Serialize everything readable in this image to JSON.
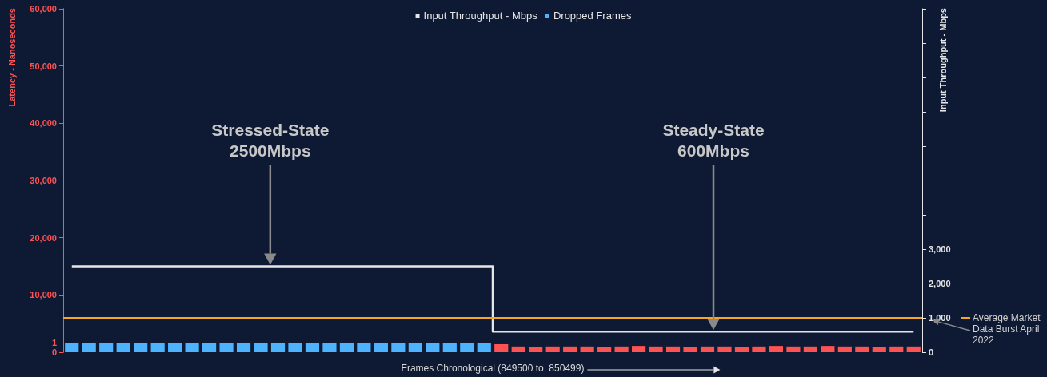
{
  "chart_data": {
    "type": "bar",
    "xlabel": "Frames Chronological (849500 to  850499)",
    "ylabel": "Latency - Nanoseconds",
    "y2label": "Input Throughput - Mbps",
    "categories": [
      null,
      null,
      null,
      null,
      null,
      null,
      null,
      null,
      null,
      null,
      null,
      null,
      null,
      null,
      null,
      null,
      null,
      null,
      null,
      null,
      null,
      null,
      null,
      null,
      null,
      null,
      null,
      null,
      null,
      null,
      null,
      null,
      null,
      null,
      null,
      null,
      null,
      null,
      null,
      null,
      null,
      null,
      null,
      null,
      null,
      null,
      null,
      null,
      null,
      null
    ],
    "ylim": [
      0,
      60000
    ],
    "yticks": [
      {
        "value": 10000,
        "label": "10,000"
      },
      {
        "value": 20000,
        "label": "20,000"
      },
      {
        "value": 30000,
        "label": "30,000"
      },
      {
        "value": 40000,
        "label": "40,000"
      },
      {
        "value": 50000,
        "label": "50,000"
      },
      {
        "value": 60000,
        "label": "60,000"
      }
    ],
    "y3lim": [
      0,
      36
    ],
    "y3ticks": [
      0,
      1
    ],
    "y2lim": [
      0,
      10000
    ],
    "y2ticks": [
      0,
      {
        "value": 1000,
        "label": "1,000"
      },
      {
        "value": 2000,
        "label": "2,000"
      },
      {
        "value": 3000,
        "label": "3,000"
      },
      {
        "value": 4000,
        "label": null
      },
      {
        "value": 5000,
        "label": null
      },
      {
        "value": 6000,
        "label": null
      },
      {
        "value": 7000,
        "label": null
      },
      {
        "value": 8000,
        "label": null
      },
      {
        "value": 9000,
        "label": null
      },
      {
        "value": 10000,
        "label": null
      }
    ],
    "tick_labels": "y",
    "legend": "top",
    "grid": false,
    "series": [
      {
        "name": "Input Throughput - Mbps",
        "type": "step",
        "axis": "y2",
        "color": "#e6e6e6",
        "values": [
          2500,
          2500,
          2500,
          2500,
          2500,
          2500,
          2500,
          2500,
          2500,
          2500,
          2500,
          2500,
          2500,
          2500,
          2500,
          2500,
          2500,
          2500,
          2500,
          2500,
          2500,
          2500,
          2500,
          2500,
          2500,
          600,
          600,
          600,
          600,
          600,
          600,
          600,
          600,
          600,
          600,
          600,
          600,
          600,
          600,
          600,
          600,
          600,
          600,
          600,
          600,
          600,
          600,
          600,
          600,
          600
        ]
      },
      {
        "name": "Dropped Frames",
        "axis": "y3",
        "color": "#4db3ff",
        "values": [
          1,
          1,
          1,
          1,
          1,
          1,
          1,
          1,
          1,
          1,
          1,
          1,
          1,
          1,
          1,
          1,
          1,
          1,
          1,
          1,
          1,
          1,
          1,
          1,
          1,
          null,
          null,
          null,
          null,
          null,
          null,
          null,
          null,
          null,
          null,
          null,
          null,
          null,
          null,
          null,
          null,
          null,
          null,
          null,
          null,
          null,
          null,
          null,
          null,
          null
        ]
      },
      {
        "color": "#ff5252",
        "values": [
          null,
          null,
          null,
          null,
          null,
          null,
          null,
          null,
          null,
          null,
          null,
          null,
          null,
          null,
          null,
          null,
          null,
          null,
          null,
          null,
          null,
          null,
          null,
          null,
          null,
          1400,
          1000,
          900,
          1000,
          1000,
          1000,
          900,
          1000,
          1100,
          1000,
          1000,
          900,
          1000,
          1000,
          900,
          1000,
          1100,
          1000,
          1000,
          1100,
          1000,
          1000,
          900,
          1000,
          1000
        ]
      }
    ],
    "ref_lines": [
      {
        "axis": "y2",
        "value": 1000,
        "label": "Average Market Data Burst April 2022",
        "color": "#f5a623"
      }
    ],
    "annotations": [
      "Stressed-State\n2500Mbps",
      "Steady-State\n600Mbps"
    ]
  }
}
